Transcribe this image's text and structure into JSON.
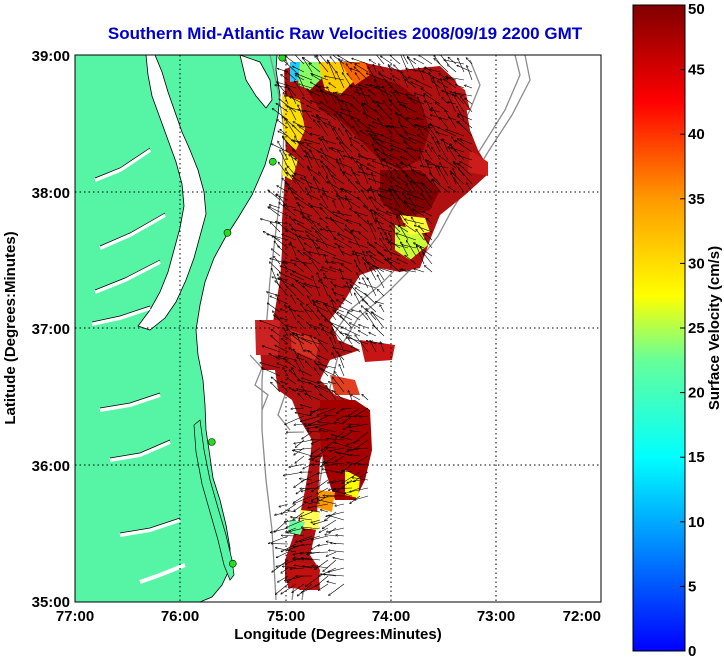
{
  "title": "Southern Mid-Atlantic Raw Velocities 2008/09/19 2200 GMT",
  "xlabel": "Longitude (Degrees:Minutes)",
  "ylabel": "Latitude (Degrees:Minutes)",
  "colorbar": {
    "label": "Surface Velocity (cm/s)",
    "ticks": [
      "0",
      "5",
      "10",
      "15",
      "20",
      "25",
      "30",
      "35",
      "40",
      "45",
      "50"
    ],
    "range": [
      0,
      50
    ],
    "colormap": "jet"
  },
  "axes": {
    "x_ticks": [
      "77:00",
      "76:00",
      "75:00",
      "74:00",
      "73:00",
      "72:00"
    ],
    "x_range": [
      -77,
      -72
    ],
    "y_ticks": [
      "39:00",
      "38:00",
      "37:00",
      "36:00",
      "35:00"
    ],
    "y_range": [
      35,
      39
    ],
    "grid": true
  },
  "colors": {
    "land": "#55f5a5",
    "coast_outline": "#000000",
    "bathymetry": "#8c8c8c",
    "title": "#0000cc",
    "stations": "#22dd22"
  },
  "stations": [
    {
      "lon": -75.03,
      "lat": 38.98
    },
    {
      "lon": -75.12,
      "lat": 38.22
    },
    {
      "lon": -75.55,
      "lat": 37.7
    },
    {
      "lon": -75.7,
      "lat": 36.17
    },
    {
      "lon": -75.5,
      "lat": 35.28
    }
  ]
}
